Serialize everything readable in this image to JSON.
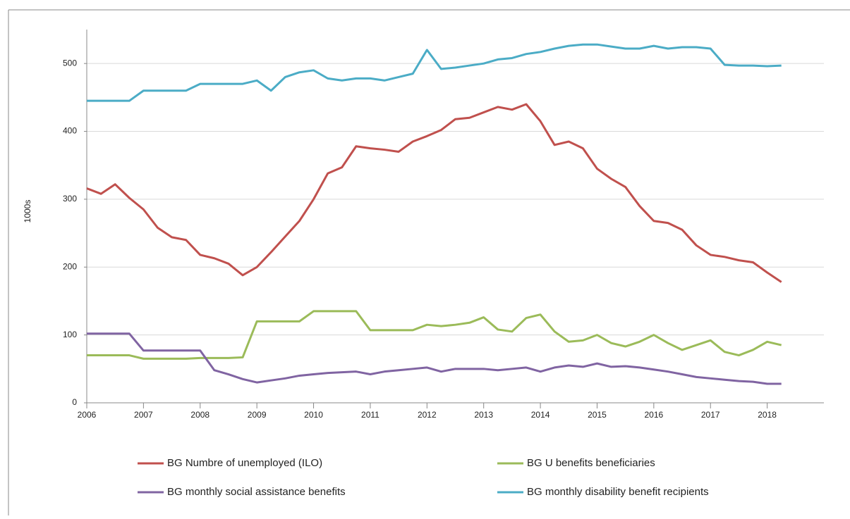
{
  "chart_data": {
    "type": "line",
    "y_label": "1000s",
    "x": [
      2006,
      2006.25,
      2006.5,
      2006.75,
      2007,
      2007.25,
      2007.5,
      2007.75,
      2008,
      2008.25,
      2008.5,
      2008.75,
      2009,
      2009.25,
      2009.5,
      2009.75,
      2010,
      2010.25,
      2010.5,
      2010.75,
      2011,
      2011.25,
      2011.5,
      2011.75,
      2012,
      2012.25,
      2012.5,
      2012.75,
      2013,
      2013.25,
      2013.5,
      2013.75,
      2014,
      2014.25,
      2014.5,
      2014.75,
      2015,
      2015.25,
      2015.5,
      2015.75,
      2016,
      2016.25,
      2016.5,
      2016.75,
      2017,
      2017.25,
      2017.5,
      2017.75,
      2018,
      2018.25
    ],
    "xlim": [
      2006,
      2019
    ],
    "xticks": [
      2006,
      2007,
      2008,
      2009,
      2010,
      2011,
      2012,
      2013,
      2014,
      2015,
      2016,
      2017,
      2018
    ],
    "ylim": [
      0,
      550
    ],
    "yticks": [
      0,
      100,
      200,
      300,
      400,
      500
    ],
    "grid": true,
    "series": [
      {
        "name": "BG Numbre of unemployed (ILO)",
        "color": "#c0504d",
        "values": [
          316,
          308,
          322,
          302,
          285,
          258,
          244,
          240,
          218,
          213,
          205,
          188,
          200,
          222,
          245,
          268,
          300,
          338,
          347,
          378,
          375,
          373,
          370,
          385,
          393,
          402,
          418,
          420,
          428,
          436,
          432,
          440,
          415,
          380,
          385,
          375,
          345,
          330,
          318,
          290,
          268,
          265,
          255,
          232,
          218,
          215,
          210,
          207,
          192,
          178
        ]
      },
      {
        "name": "BG U benefits beneficiaries",
        "color": "#9bbb59",
        "values": [
          70,
          70,
          70,
          70,
          65,
          65,
          65,
          65,
          66,
          66,
          66,
          67,
          120,
          120,
          120,
          120,
          135,
          135,
          135,
          135,
          107,
          107,
          107,
          107,
          115,
          113,
          115,
          118,
          126,
          108,
          105,
          125,
          130,
          105,
          90,
          92,
          100,
          88,
          83,
          90,
          100,
          88,
          78,
          85,
          92,
          75,
          70,
          78,
          90,
          85
        ]
      },
      {
        "name": "BG monthly social assistance benefits",
        "color": "#8064a2",
        "values": [
          102,
          102,
          102,
          102,
          77,
          77,
          77,
          77,
          77,
          48,
          42,
          35,
          30,
          33,
          36,
          40,
          42,
          44,
          45,
          46,
          42,
          46,
          48,
          50,
          52,
          46,
          50,
          50,
          50,
          48,
          50,
          52,
          46,
          52,
          55,
          53,
          58,
          53,
          54,
          52,
          49,
          46,
          42,
          38,
          36,
          34,
          32,
          31,
          28,
          28
        ]
      },
      {
        "name": "BG monthly disability benefit recipients",
        "color": "#4bacc6",
        "values": [
          445,
          445,
          445,
          445,
          460,
          460,
          460,
          460,
          470,
          470,
          470,
          470,
          475,
          460,
          480,
          487,
          490,
          478,
          475,
          478,
          478,
          475,
          480,
          485,
          520,
          492,
          494,
          497,
          500,
          506,
          508,
          514,
          517,
          522,
          526,
          528,
          528,
          525,
          522,
          522,
          526,
          522,
          524,
          524,
          522,
          498,
          497,
          497,
          496,
          497
        ]
      }
    ]
  }
}
